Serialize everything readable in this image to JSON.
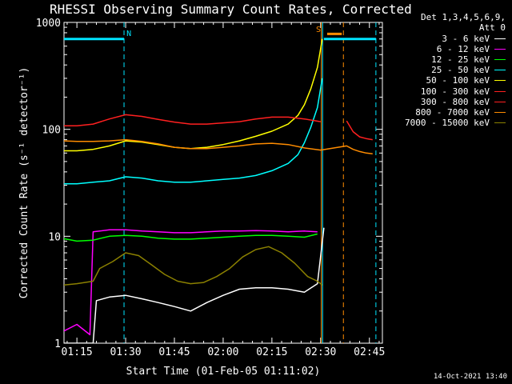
{
  "chart_data": {
    "type": "line",
    "title": "RHESSI Observing Summary Count Rates, Corrected",
    "xlabel": "Start Time (01-Feb-05 01:11:02)",
    "ylabel": "Corrected Count Rate (s⁻¹ detector⁻¹)",
    "xlim": [
      71.03,
      169.0
    ],
    "ylim": [
      1,
      1000
    ],
    "yscale": "log",
    "x_ticks": [
      75,
      90,
      105,
      120,
      135,
      150,
      165
    ],
    "x_tick_labels": [
      "01:15",
      "01:30",
      "01:45",
      "02:00",
      "02:15",
      "02:30",
      "02:45"
    ],
    "y_ticks": [
      1,
      10,
      100,
      1000
    ],
    "y_tick_labels": [
      "1",
      "10",
      "100",
      "1000"
    ],
    "legend_position": "top-right-outside",
    "legend_header": [
      "Det 1,3,4,5,6,9,",
      "Att 0"
    ],
    "series": [
      {
        "name": "3 - 6 keV",
        "color": "#ffffff",
        "x": [
          71,
          80,
          81,
          85,
          90,
          95,
          100,
          105,
          110,
          115,
          120,
          125,
          130,
          135,
          140,
          145,
          149,
          151
        ],
        "y": [
          1,
          1,
          2.5,
          2.7,
          2.8,
          2.6,
          2.4,
          2.2,
          2.0,
          2.4,
          2.8,
          3.2,
          3.3,
          3.3,
          3.2,
          3.0,
          3.6,
          12
        ]
      },
      {
        "name": "6 - 12 keV",
        "color": "#ff00ff",
        "x": [
          71,
          75,
          79,
          80,
          85,
          90,
          95,
          100,
          105,
          110,
          115,
          120,
          125,
          130,
          135,
          140,
          145,
          149
        ],
        "y": [
          1.3,
          1.5,
          1.2,
          11,
          11.5,
          11.5,
          11.2,
          11,
          10.8,
          10.8,
          11,
          11.2,
          11.2,
          11.3,
          11.2,
          11,
          11.2,
          11
        ]
      },
      {
        "name": "12 - 25 keV",
        "color": "#00ff00",
        "x": [
          71,
          75,
          80,
          85,
          90,
          95,
          100,
          105,
          110,
          115,
          120,
          125,
          130,
          135,
          140,
          145,
          149
        ],
        "y": [
          9.5,
          9.0,
          9.2,
          10,
          10.2,
          10.0,
          9.6,
          9.4,
          9.4,
          9.6,
          9.8,
          10.0,
          10.2,
          10.2,
          10.0,
          9.8,
          10.5
        ]
      },
      {
        "name": "25 - 50 keV",
        "color": "#00ffff",
        "x": [
          71,
          75,
          80,
          85,
          90,
          95,
          100,
          105,
          110,
          115,
          120,
          125,
          130,
          135,
          140,
          143,
          145,
          147,
          149,
          150.5
        ],
        "y": [
          31,
          31,
          32,
          33,
          36,
          35,
          33,
          32,
          32,
          33,
          34,
          35,
          37,
          41,
          48,
          58,
          75,
          105,
          160,
          300
        ]
      },
      {
        "name": "50 - 100 keV",
        "color": "#ffff00",
        "x": [
          71,
          75,
          80,
          85,
          90,
          95,
          100,
          105,
          110,
          115,
          120,
          125,
          130,
          135,
          140,
          143,
          145,
          147,
          149,
          150.5
        ],
        "y": [
          63,
          63,
          65,
          70,
          78,
          76,
          72,
          68,
          66,
          68,
          72,
          78,
          86,
          96,
          112,
          135,
          170,
          240,
          380,
          700
        ]
      },
      {
        "name": "100 - 300 keV",
        "color": "#ff2020",
        "x": [
          71,
          75,
          80,
          85,
          90,
          95,
          100,
          105,
          110,
          115,
          120,
          125,
          130,
          135,
          140,
          145,
          150
        ],
        "y": [
          108,
          108,
          112,
          125,
          137,
          132,
          124,
          117,
          112,
          112,
          115,
          118,
          125,
          130,
          130,
          125,
          118
        ]
      },
      {
        "name": "300 - 800 keV",
        "color": "#ff2020",
        "x": [
          158,
          160,
          162,
          164,
          166
        ],
        "y": [
          120,
          95,
          85,
          82,
          80
        ]
      },
      {
        "name": "800 - 7000 keV",
        "color": "#ff8c00",
        "x": [
          71,
          75,
          80,
          85,
          90,
          95,
          100,
          105,
          110,
          115,
          120,
          125,
          130,
          135,
          140,
          145,
          150,
          158,
          160,
          162,
          164,
          166
        ],
        "y": [
          78,
          77,
          77,
          78,
          80,
          77,
          73,
          68,
          66,
          66,
          68,
          70,
          73,
          74,
          72,
          67,
          64,
          70,
          65,
          62,
          60,
          59
        ]
      },
      {
        "name": "7000 - 15000 keV",
        "color": "#8b8000",
        "x": [
          71,
          75,
          80,
          82,
          86,
          90,
          94,
          98,
          102,
          106,
          110,
          114,
          118,
          122,
          126,
          130,
          134,
          138,
          142,
          146,
          149,
          150.5
        ],
        "y": [
          3.5,
          3.6,
          3.8,
          5.0,
          5.8,
          7.0,
          6.6,
          5.4,
          4.4,
          3.8,
          3.6,
          3.7,
          4.2,
          5.0,
          6.4,
          7.5,
          8.0,
          7.0,
          5.6,
          4.2,
          3.8,
          3.5
        ]
      }
    ],
    "overlay_lines": [
      {
        "name": "night-segment-left",
        "color": "#00e5ff",
        "x": [
          71,
          89.5
        ],
        "y": [
          700,
          700
        ]
      },
      {
        "name": "night-segment-right",
        "color": "#00e5ff",
        "x": [
          151,
          167
        ],
        "y": [
          700,
          700
        ]
      },
      {
        "name": "saa-segment",
        "color": "#ff8c00",
        "x": [
          152,
          156.5
        ],
        "y": [
          780,
          780
        ]
      }
    ],
    "vlines": [
      {
        "name": "night-boundary",
        "color": "#00e5ff",
        "x": 89.5,
        "dashed": true
      },
      {
        "name": "orange-boundary",
        "color": "#ff8c00",
        "x": 150.2,
        "dashed": false
      },
      {
        "name": "saa-start",
        "color": "#00e5ff",
        "x": 150.6,
        "dashed": false
      },
      {
        "name": "saa-end",
        "color": "#ff8c00",
        "x": 157.0,
        "dashed": true
      },
      {
        "name": "night-boundary-2",
        "color": "#00e5ff",
        "x": 167.0,
        "dashed": true
      }
    ],
    "plot_labels": [
      {
        "text": "N",
        "color": "#00e5ff",
        "x": 91,
        "y": 800
      },
      {
        "text": "S",
        "color": "#ff8c00",
        "x": 149.3,
        "y": 870
      }
    ]
  },
  "footer": "14-Oct-2021 13:40"
}
